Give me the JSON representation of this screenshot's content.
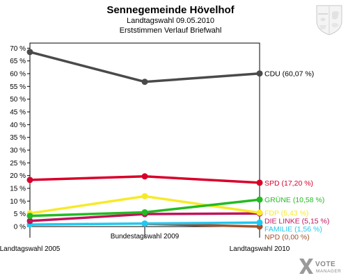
{
  "chart_data": {
    "type": "line",
    "title": "Sennegemeinde Hövelhof",
    "subtitle1": "Landtagswahl 09.05.2010",
    "subtitle2": "Erststimmen Verlauf Briefwahl",
    "categories": [
      "Landtagswahl 2005",
      "Bundestagswahl 2009",
      "Landtagswahl 2010"
    ],
    "y_ticks": [
      "0 %",
      "5 %",
      "10 %",
      "15 %",
      "20 %",
      "25 %",
      "30 %",
      "35 %",
      "40 %",
      "45 %",
      "50 %",
      "55 %",
      "60 %",
      "65 %",
      "70 %"
    ],
    "ylim": [
      0,
      72
    ],
    "grid": false,
    "series": [
      {
        "name": "CDU",
        "label": "CDU (60,07 %)",
        "color": "#4a4a4a",
        "values": [
          68.5,
          56.8,
          60.07
        ]
      },
      {
        "name": "SPD",
        "label": "SPD (17,20 %)",
        "color": "#d8002a",
        "values": [
          18.3,
          19.7,
          17.2
        ]
      },
      {
        "name": "GRÜNE",
        "label": "GRÜNE (10,58 %)",
        "color": "#22bb22",
        "values": [
          4.2,
          5.6,
          10.58
        ]
      },
      {
        "name": "FDP",
        "label": "FDP (5,43 %)",
        "color": "#f7ea2a",
        "values": [
          5.2,
          11.9,
          5.43
        ]
      },
      {
        "name": "DIE LINKE",
        "label": "DIE LINKE (5,15 %)",
        "color": "#c0135a",
        "values": [
          2.2,
          4.9,
          5.15
        ]
      },
      {
        "name": "FAMILIE",
        "label": "FAMILIE (1,56 %)",
        "color": "#22c8f0",
        "values": [
          0.8,
          1.2,
          1.56
        ]
      },
      {
        "name": "NPD",
        "label": "NPD (0,00 %)",
        "color": "#a0522d",
        "values": [
          null,
          1.1,
          0.0
        ]
      }
    ]
  },
  "brand": {
    "name": "VOTE",
    "sub": "MANAGER"
  }
}
